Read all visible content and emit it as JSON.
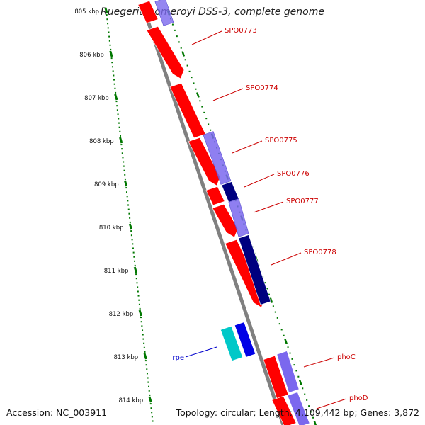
{
  "header": {
    "title": "Ruegeria pomeroyi DSS-3, complete genome"
  },
  "footer": {
    "accession": "Accession: NC_003911",
    "summary": "Topology: circular; Length: 4,109,442 bp; Genes: 3,872"
  },
  "colors": {
    "forward_cds": "#ff0000",
    "feature_light": "#7b68ee",
    "feature_dark": "#00007f",
    "feature_cyan": "#00c8c8",
    "feature_blue": "#0000e6",
    "backbone": "#808080",
    "tick": "#007700",
    "gene_label": "#cc0000",
    "special_label": "#0000cc"
  },
  "ruler": {
    "ticks": [
      {
        "label": "805 kbp"
      },
      {
        "label": "806 kbp"
      },
      {
        "label": "807 kbp"
      },
      {
        "label": "808 kbp"
      },
      {
        "label": "809 kbp"
      },
      {
        "label": "810 kbp"
      },
      {
        "label": "811 kbp"
      },
      {
        "label": "812 kbp"
      },
      {
        "label": "813 kbp"
      },
      {
        "label": "814 kbp"
      }
    ]
  },
  "gene_labels": [
    {
      "label": "SPO0773",
      "color": "red"
    },
    {
      "label": "SPO0774",
      "color": "red"
    },
    {
      "label": "SPO0775",
      "color": "red"
    },
    {
      "label": "SPO0776",
      "color": "red"
    },
    {
      "label": "SPO0777",
      "color": "red"
    },
    {
      "label": "SPO0778",
      "color": "red"
    },
    {
      "label": "rpe",
      "color": "blue"
    },
    {
      "label": "phoC",
      "color": "red"
    },
    {
      "label": "phoD",
      "color": "red"
    }
  ]
}
